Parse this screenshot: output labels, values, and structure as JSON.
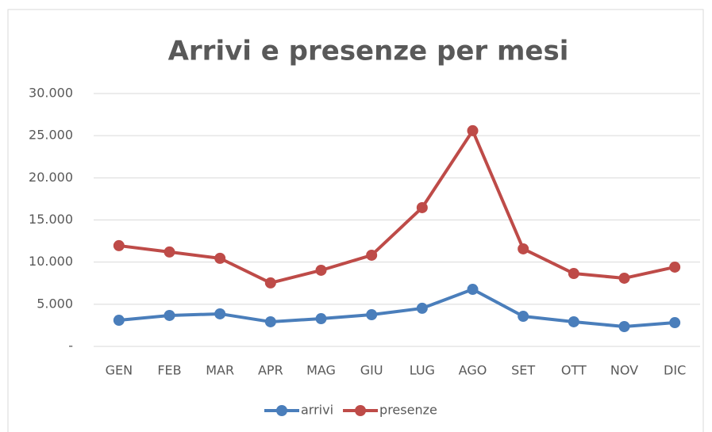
{
  "chart_data": {
    "type": "line",
    "title": "Arrivi e presenze per mesi",
    "categories": [
      "GEN",
      "FEB",
      "MAR",
      "APR",
      "MAG",
      "GIU",
      "LUG",
      "AGO",
      "SET",
      "OTT",
      "NOV",
      "DIC"
    ],
    "series": [
      {
        "name": "arrivi",
        "color": "#4a7ebb",
        "values": [
          3100,
          3670,
          3860,
          2920,
          3290,
          3760,
          4520,
          6770,
          3570,
          2920,
          2350,
          2820
        ]
      },
      {
        "name": "presenze",
        "color": "#be4b48",
        "values": [
          11950,
          11200,
          10450,
          7530,
          9030,
          10820,
          16460,
          25590,
          11570,
          8650,
          8090,
          9410
        ]
      }
    ],
    "ylim": [
      0,
      30000
    ],
    "yticks": [
      {
        "value": 0,
        "label": "-"
      },
      {
        "value": 5000,
        "label": "5.000"
      },
      {
        "value": 10000,
        "label": "10.000"
      },
      {
        "value": 15000,
        "label": "15.000"
      },
      {
        "value": 20000,
        "label": "20.000"
      },
      {
        "value": 25000,
        "label": "25.000"
      },
      {
        "value": 30000,
        "label": "30.000"
      }
    ],
    "grid": true,
    "legend": "bottom"
  }
}
